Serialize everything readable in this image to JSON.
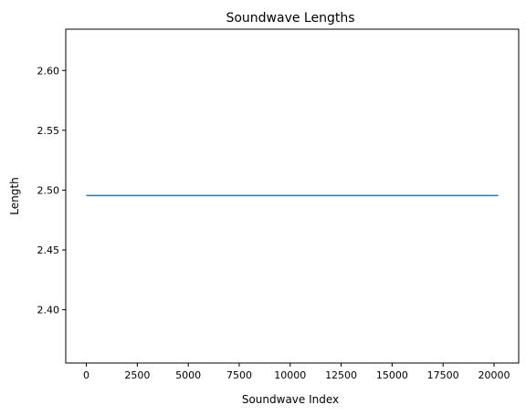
{
  "chart_data": {
    "type": "line",
    "title": "Soundwave Lengths",
    "xlabel": "Soundwave Index",
    "ylabel": "Length",
    "xlim": [
      -1010,
      21210
    ],
    "ylim": [
      2.3555,
      2.6345
    ],
    "xticks": [
      0,
      2500,
      5000,
      7500,
      10000,
      12500,
      15000,
      17500,
      20000
    ],
    "xtick_labels": [
      "0",
      "2500",
      "5000",
      "7500",
      "10000",
      "12500",
      "15000",
      "17500",
      "20000"
    ],
    "yticks": [
      2.4,
      2.45,
      2.5,
      2.55,
      2.6
    ],
    "ytick_labels": [
      "2.40",
      "2.45",
      "2.50",
      "2.55",
      "2.60"
    ],
    "grid": false,
    "series": [
      {
        "color": "#1f77b4",
        "x": [
          0,
          20200
        ],
        "y": [
          2.4955,
          2.4955
        ]
      }
    ]
  }
}
